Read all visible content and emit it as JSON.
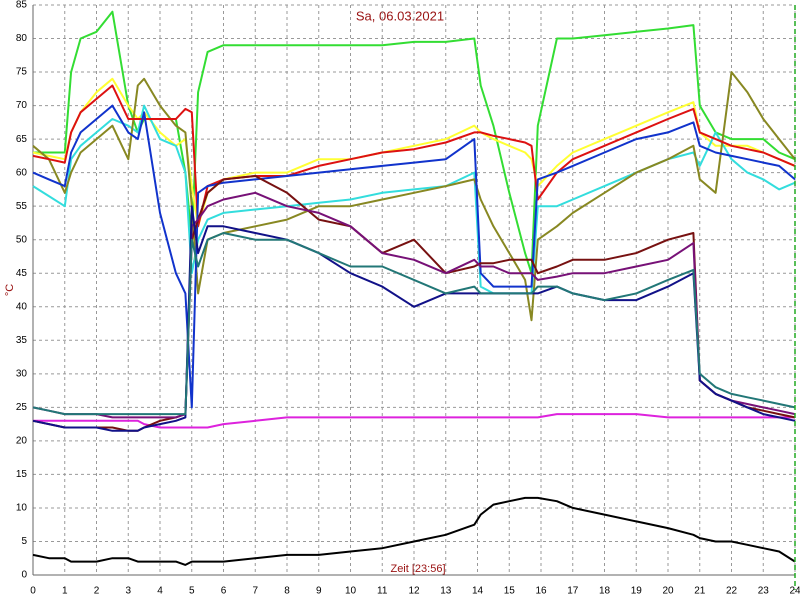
{
  "chart_data": {
    "type": "line",
    "title": "Sa, 06.03.2021",
    "y_label": "°C",
    "x_label": "Zeit [23:56]",
    "xlim": [
      0,
      24
    ],
    "ylim": [
      0,
      85
    ],
    "xticks": [
      0,
      1,
      2,
      3,
      4,
      5,
      6,
      7,
      8,
      9,
      10,
      11,
      12,
      13,
      14,
      15,
      16,
      17,
      18,
      19,
      20,
      21,
      22,
      23,
      24
    ],
    "yticks": [
      0,
      5,
      10,
      15,
      20,
      25,
      30,
      35,
      40,
      45,
      50,
      55,
      60,
      65,
      70,
      75,
      80,
      85
    ],
    "grid": true,
    "x": [
      0,
      0.5,
      1,
      1.2,
      1.5,
      2,
      2.5,
      3,
      3.3,
      3.5,
      4,
      4.5,
      4.8,
      5,
      5.2,
      5.5,
      6,
      7,
      8,
      9,
      10,
      11,
      12,
      13,
      13.9,
      14.1,
      14.5,
      15,
      15.5,
      15.7,
      15.9,
      16.5,
      17,
      18,
      19,
      20,
      20.8,
      21,
      21.5,
      22,
      22.5,
      23,
      23.5,
      24
    ],
    "series": [
      {
        "color": "#dd22dd",
        "values": [
          23,
          23,
          23,
          23,
          23,
          23,
          23,
          23,
          23,
          22.5,
          22,
          22,
          22,
          22,
          22,
          22,
          22.5,
          23,
          23.5,
          23.5,
          23.5,
          23.5,
          23.5,
          23.5,
          23.5,
          23.5,
          23.5,
          23.5,
          23.5,
          23.5,
          23.5,
          24,
          24,
          24,
          24,
          23.5,
          23.5,
          23.5,
          23.5,
          23.5,
          23.5,
          23.5,
          23.5,
          23.5
        ]
      },
      {
        "color": "#33dd33",
        "values": [
          63,
          63,
          63,
          75,
          80,
          81,
          84,
          70,
          66,
          68,
          68,
          68,
          60,
          50,
          72,
          78,
          79,
          79,
          79,
          79,
          79,
          79,
          79.5,
          79.5,
          80,
          73,
          67,
          57,
          48,
          45,
          67,
          80,
          80,
          80.5,
          81,
          81.5,
          82,
          70,
          66,
          65,
          65,
          65,
          63,
          62
        ]
      },
      {
        "color": "#ffff33",
        "values": [
          63,
          62.5,
          62,
          66,
          69,
          72,
          74,
          70,
          68,
          69,
          66,
          64,
          65,
          58,
          52,
          57,
          59,
          60,
          60,
          62,
          62,
          63,
          64,
          65,
          67,
          66,
          65,
          64,
          63,
          62,
          58,
          61,
          63,
          65,
          67,
          69,
          70.5,
          66,
          64,
          64,
          64,
          63,
          62,
          61
        ]
      },
      {
        "color": "#33dddd",
        "values": [
          58,
          56.5,
          55,
          62,
          64,
          66,
          68,
          67,
          66,
          70,
          65,
          64,
          60,
          45,
          50,
          53,
          54,
          54.5,
          55,
          55.5,
          56,
          57,
          57.5,
          58,
          60,
          43,
          42,
          42,
          42,
          42,
          55,
          55,
          56,
          58,
          60,
          62,
          63,
          61,
          66,
          62,
          60,
          59,
          57.5,
          58.5
        ]
      },
      {
        "color": "#888822",
        "values": [
          64,
          62,
          57,
          60,
          63,
          65,
          67,
          62,
          73,
          74,
          70,
          67,
          66,
          55,
          42,
          50,
          51,
          52,
          53,
          55,
          55,
          56,
          57,
          58,
          59,
          56,
          52,
          48,
          44,
          38,
          50,
          52,
          54,
          57,
          60,
          62,
          64,
          59,
          57,
          75,
          72,
          68,
          65,
          62
        ]
      },
      {
        "color": "#dd1111",
        "values": [
          62.5,
          62,
          61.5,
          66,
          69,
          71,
          73,
          68,
          68,
          68,
          68,
          68,
          69.5,
          69,
          52,
          58,
          59,
          59.5,
          59.5,
          61,
          62,
          63,
          63.5,
          64.5,
          66,
          66,
          65.5,
          65,
          64.5,
          64,
          56,
          60,
          62,
          64,
          66,
          68,
          69.5,
          66,
          65,
          64,
          63.5,
          63,
          62,
          61
        ]
      },
      {
        "color": "#1133cc",
        "values": [
          60,
          59,
          58,
          63,
          66,
          68,
          70,
          66,
          65,
          69,
          54,
          45,
          42,
          25,
          57,
          58,
          58.5,
          59,
          59.5,
          60,
          60.5,
          61,
          61.5,
          62,
          65,
          45,
          43,
          43,
          43,
          43,
          59,
          60,
          61,
          63,
          65,
          66,
          67.5,
          64,
          63,
          62.5,
          62,
          61.5,
          61,
          59
        ]
      },
      {
        "color": "#771111",
        "values": [
          23,
          22.5,
          22,
          22,
          22,
          22,
          22,
          21.5,
          21.5,
          22,
          23,
          23.5,
          24,
          50,
          53,
          57,
          59,
          59.5,
          57,
          53,
          52,
          48,
          50,
          45,
          46,
          46.5,
          46.5,
          47,
          47,
          47,
          45,
          46,
          47,
          47,
          48,
          50,
          51,
          29,
          27,
          26,
          25,
          24.5,
          24,
          23.5
        ]
      },
      {
        "color": "#771177",
        "values": [
          25,
          24.5,
          24,
          24,
          24,
          24,
          23.5,
          23.5,
          23.5,
          23.5,
          23.5,
          23.5,
          24,
          52,
          53,
          55,
          56,
          57,
          55,
          54,
          52,
          48,
          47,
          45,
          47,
          46,
          46,
          45,
          45,
          45,
          44,
          44.5,
          45,
          45,
          46,
          47,
          49.5,
          29,
          27,
          26,
          25.5,
          25,
          24.5,
          24
        ]
      },
      {
        "color": "#111188",
        "values": [
          23,
          22.5,
          22,
          22,
          22,
          22,
          21.5,
          21.5,
          21.5,
          22,
          22.5,
          23,
          23.5,
          55,
          48,
          52,
          52,
          51,
          50,
          48,
          45,
          43,
          40,
          42,
          42,
          42,
          42,
          42,
          42,
          42,
          42,
          43,
          42,
          41,
          41,
          43,
          45,
          29,
          27,
          26,
          25,
          24,
          23.5,
          23
        ]
      },
      {
        "color": "#227777",
        "values": [
          25,
          24.5,
          24,
          24,
          24,
          24,
          24,
          24,
          24,
          24,
          24,
          24,
          24,
          50,
          46,
          50,
          51,
          50,
          50,
          48,
          46,
          46,
          44,
          42,
          43,
          42,
          42,
          42,
          42,
          42,
          43,
          43,
          42,
          41,
          42,
          44,
          45.5,
          30,
          28,
          27,
          26.5,
          26,
          25.5,
          25
        ]
      },
      {
        "color": "#000000",
        "values": [
          3,
          2.5,
          2.5,
          2,
          2,
          2,
          2.5,
          2.5,
          2,
          2,
          2,
          2,
          1.5,
          2,
          2,
          2,
          2,
          2.5,
          3,
          3,
          3.5,
          4,
          5,
          6,
          7.5,
          9,
          10.5,
          11,
          11.5,
          11.5,
          11.5,
          11,
          10,
          9,
          8,
          7,
          6,
          5.5,
          5,
          5,
          4.5,
          4,
          3.5,
          2
        ]
      }
    ]
  }
}
